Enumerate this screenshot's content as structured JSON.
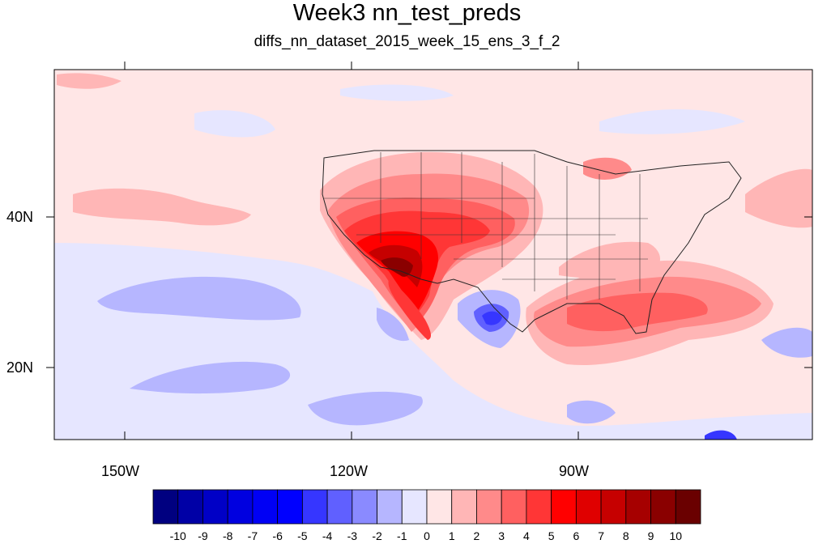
{
  "title": "Week3 nn_test_preds",
  "subtitle": "diffs_nn_dataset_2015_week_15_ens_3_f_2",
  "map": {
    "lon_labels": [
      "150W",
      "120W",
      "90W"
    ],
    "lat_labels": [
      "40N",
      "20N"
    ],
    "lon_range": [
      -159,
      -61
    ],
    "lat_range": [
      10,
      59
    ]
  },
  "colorbar": {
    "labels": [
      "-10",
      "-9",
      "-8",
      "-7",
      "-6",
      "-5",
      "-4",
      "-3",
      "-2",
      "-1",
      "0",
      "1",
      "2",
      "3",
      "4",
      "5",
      "6",
      "7",
      "8",
      "9",
      "10"
    ],
    "colors": [
      "#000080",
      "#0000a6",
      "#0000c6",
      "#0000e0",
      "#0000f5",
      "#0000ff",
      "#3636ff",
      "#6060ff",
      "#8a8aff",
      "#b6b6ff",
      "#e6e6ff",
      "#ffe6e6",
      "#ffb6b6",
      "#ff8a8a",
      "#ff6060",
      "#ff3636",
      "#ff0000",
      "#e00000",
      "#c60000",
      "#a60000",
      "#8a0000",
      "#6a0000"
    ]
  }
}
